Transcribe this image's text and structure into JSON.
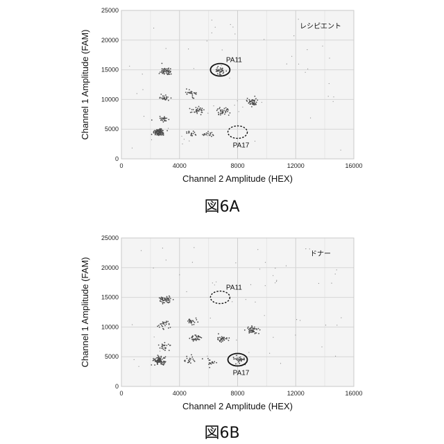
{
  "chart_data": [
    {
      "type": "scatter",
      "figure_label": "図6A",
      "title": "",
      "sample_label": "レシピエント",
      "xlabel": "Channel 2 Amplitude (HEX)",
      "ylabel": "Channel 1 Amplitude (FAM)",
      "xlim": [
        0,
        16000
      ],
      "ylim": [
        0,
        25000
      ],
      "xticks": [
        0,
        4000,
        8000,
        12000,
        16000
      ],
      "yticks": [
        0,
        5000,
        10000,
        15000,
        20000,
        25000
      ],
      "grid": true,
      "clusters": [
        {
          "x": 2600,
          "y": 4500,
          "count": 90
        },
        {
          "x": 2900,
          "y": 6700,
          "count": 25
        },
        {
          "x": 2950,
          "y": 10300,
          "count": 25
        },
        {
          "x": 3100,
          "y": 14700,
          "count": 55
        },
        {
          "x": 4800,
          "y": 4400,
          "count": 18
        },
        {
          "x": 4800,
          "y": 11000,
          "count": 25
        },
        {
          "x": 5200,
          "y": 8200,
          "count": 35
        },
        {
          "x": 6100,
          "y": 4100,
          "count": 18
        },
        {
          "x": 6800,
          "y": 14800,
          "count": 35
        },
        {
          "x": 7000,
          "y": 8000,
          "count": 35
        },
        {
          "x": 9000,
          "y": 9600,
          "count": 45
        }
      ],
      "annotations": [
        {
          "label": "PA11",
          "x": 6800,
          "y": 15000,
          "style": "solid"
        },
        {
          "label": "PA17",
          "x": 8000,
          "y": 4500,
          "style": "dashed"
        }
      ]
    },
    {
      "type": "scatter",
      "figure_label": "図6B",
      "title": "",
      "sample_label": "ドナー",
      "xlabel": "Channel 2 Amplitude (HEX)",
      "ylabel": "Channel 1 Amplitude (FAM)",
      "xlim": [
        0,
        16000
      ],
      "ylim": [
        0,
        25000
      ],
      "xticks": [
        0,
        4000,
        8000,
        12000,
        16000
      ],
      "yticks": [
        0,
        5000,
        10000,
        15000,
        20000,
        25000
      ],
      "grid": true,
      "clusters": [
        {
          "x": 2600,
          "y": 4400,
          "count": 90
        },
        {
          "x": 2900,
          "y": 6800,
          "count": 25
        },
        {
          "x": 2950,
          "y": 10400,
          "count": 25
        },
        {
          "x": 3000,
          "y": 14600,
          "count": 55
        },
        {
          "x": 4700,
          "y": 4400,
          "count": 20
        },
        {
          "x": 4800,
          "y": 11000,
          "count": 25
        },
        {
          "x": 5200,
          "y": 8100,
          "count": 35
        },
        {
          "x": 6100,
          "y": 4100,
          "count": 18
        },
        {
          "x": 6900,
          "y": 8000,
          "count": 35
        },
        {
          "x": 8100,
          "y": 4500,
          "count": 35
        },
        {
          "x": 9000,
          "y": 9500,
          "count": 45
        }
      ],
      "annotations": [
        {
          "label": "PA11",
          "x": 6800,
          "y": 15000,
          "style": "dashed"
        },
        {
          "label": "PA17",
          "x": 8000,
          "y": 4500,
          "style": "solid"
        }
      ]
    }
  ]
}
